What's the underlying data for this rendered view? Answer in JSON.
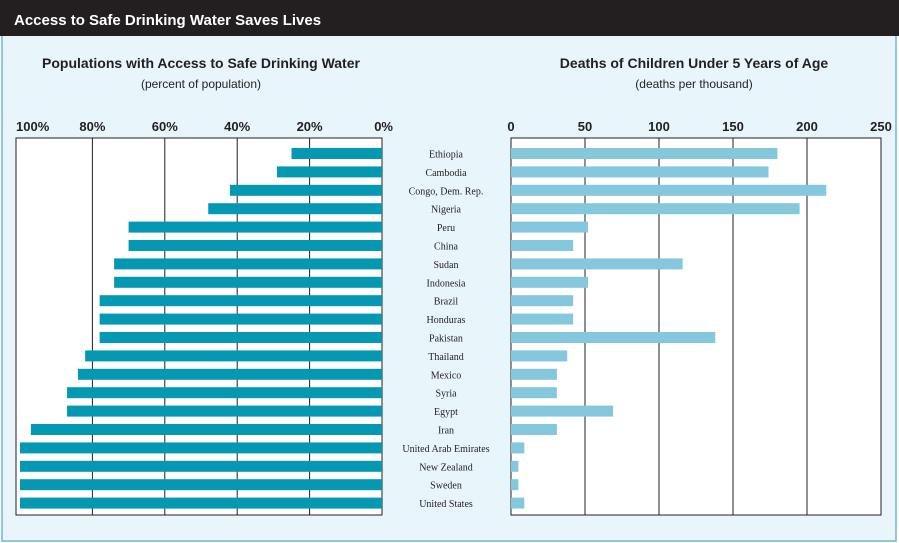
{
  "page": {
    "title": "Access to Safe Drinking Water Saves Lives",
    "colors": {
      "header_bg": "#231f20",
      "panel_bg": "#e8f5fb",
      "frame": "#6fb7d3",
      "left_bar": "#0598b2",
      "right_bar": "#85c7dc"
    }
  },
  "chart_data": [
    {
      "type": "bar",
      "orientation": "horizontal",
      "direction": "reversed",
      "title": "Populations with Access to Safe Drinking Water",
      "subtitle": "(percent of population)",
      "xlim": [
        100,
        0
      ],
      "ticks": [
        100,
        80,
        60,
        40,
        20,
        0
      ],
      "tick_labels": [
        "100%",
        "80%",
        "60%",
        "40%",
        "20%",
        "0%"
      ],
      "grid": true,
      "categories": [
        "Ethiopia",
        "Cambodia",
        "Congo, Dem. Rep.",
        "Nigeria",
        "Peru",
        "China",
        "Sudan",
        "Indonesia",
        "Brazil",
        "Honduras",
        "Pakistan",
        "Thailand",
        "Mexico",
        "Syria",
        "Egypt",
        "Iran",
        "United Arab Emirates",
        "New Zealand",
        "Sweden",
        "United States"
      ],
      "values": [
        25,
        29,
        42,
        48,
        70,
        70,
        74,
        74,
        78,
        78,
        78,
        82,
        84,
        87,
        87,
        97,
        100,
        100,
        100,
        100
      ]
    },
    {
      "type": "bar",
      "orientation": "horizontal",
      "title": "Deaths of Children Under 5 Years of Age",
      "subtitle": "(deaths per thousand)",
      "xlim": [
        0,
        250
      ],
      "ticks": [
        0,
        50,
        100,
        150,
        200,
        250
      ],
      "tick_labels": [
        "0",
        "50",
        "100",
        "150",
        "200",
        "250"
      ],
      "grid": true,
      "categories": [
        "Ethiopia",
        "Cambodia",
        "Congo, Dem. Rep.",
        "Nigeria",
        "Peru",
        "China",
        "Sudan",
        "Indonesia",
        "Brazil",
        "Honduras",
        "Pakistan",
        "Thailand",
        "Mexico",
        "Syria",
        "Egypt",
        "Iran",
        "United Arab Emirates",
        "New Zealand",
        "Sweden",
        "United States"
      ],
      "values": [
        180,
        174,
        213,
        195,
        52,
        42,
        116,
        52,
        42,
        42,
        138,
        38,
        31,
        31,
        69,
        31,
        9,
        5,
        5,
        9
      ]
    }
  ]
}
